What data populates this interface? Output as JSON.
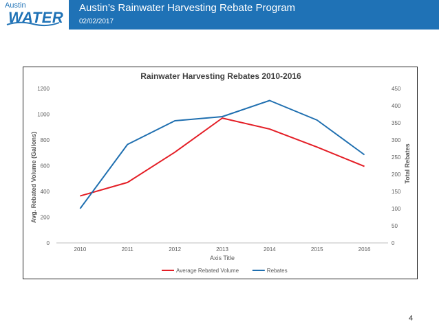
{
  "header": {
    "logo_small": "Austin",
    "logo_big": "WATER",
    "title": "Austin’s Rainwater Harvesting Rebate Program",
    "date": "02/02/2017"
  },
  "page_number": "4",
  "colors": {
    "header_bg": "#1f72b6",
    "series_volume": "#e41e26",
    "series_rebates": "#1f6fb0"
  },
  "chart_data": {
    "type": "line",
    "title": "Rainwater Harvesting Rebates 2010-2016",
    "xlabel": "Axis Title",
    "ylabel": "Avg. Rebated Volume (Gallons)",
    "y2label": "Total Rebates",
    "categories": [
      "2010",
      "2011",
      "2012",
      "2013",
      "2014",
      "2015",
      "2016"
    ],
    "ylim": [
      0,
      1200
    ],
    "y_ticks": [
      0,
      200,
      400,
      600,
      800,
      1000,
      1200
    ],
    "y2lim": [
      0,
      450
    ],
    "y2_ticks": [
      0,
      50,
      100,
      150,
      200,
      250,
      300,
      350,
      400,
      450
    ],
    "series": [
      {
        "name": "Average Rebated Volume",
        "axis": "left",
        "color": "#e41e26",
        "values": [
          365,
          470,
          705,
          970,
          885,
          745,
          595
        ]
      },
      {
        "name": "Rebates",
        "axis": "right",
        "color": "#1f6fb0",
        "values": [
          100,
          287,
          356,
          368,
          415,
          358,
          257
        ]
      }
    ],
    "legend_position": "bottom-center",
    "grid": false
  }
}
